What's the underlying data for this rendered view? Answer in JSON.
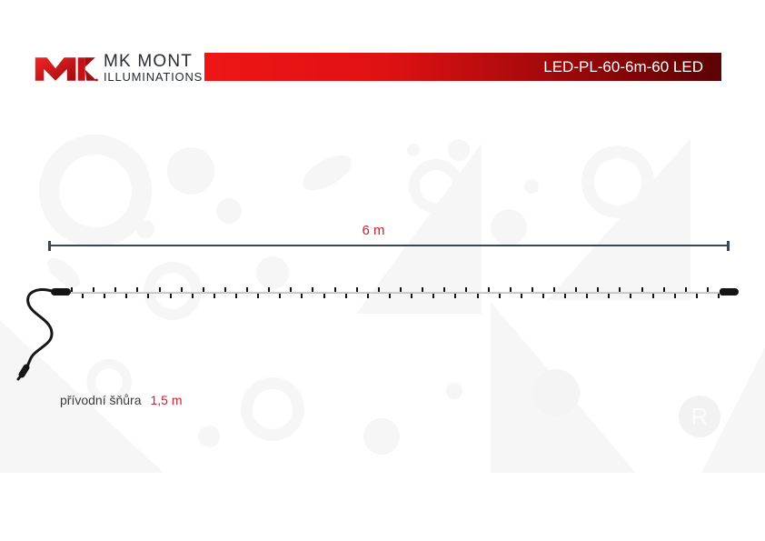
{
  "page": {
    "title": "LED-PL-60-6m-60 LED"
  },
  "header": {
    "logo": {
      "monogram": "MK",
      "name": "MK MONT",
      "subtitle": "ILLUMINATIONS"
    },
    "banner": {
      "label": "LED-PL-60-6m-60 LED"
    }
  },
  "diagram": {
    "dimension": {
      "label": "6 m"
    },
    "string": {
      "led_count": 60
    },
    "cord_label": {
      "text": "přívodní šňůra",
      "value": "1,5 m"
    }
  },
  "watermark": {
    "badge_letter": "R"
  },
  "colors": {
    "accent_red": "#c9232e",
    "banner_gradient_start": "#ee1515",
    "banner_gradient_end": "#5a0305",
    "logo_text": "#262a33",
    "dimension_line": "#3e4552",
    "wire": "#c5caca",
    "ink": "#141414",
    "watermark": "#f6f6f6"
  }
}
